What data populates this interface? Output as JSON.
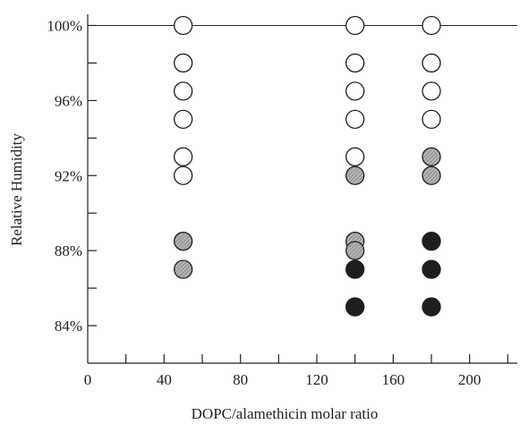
{
  "chart_data": {
    "type": "scatter",
    "title": "",
    "xlabel": "DOPC/alamethicin molar ratio",
    "ylabel": "Relative Humidity",
    "xlim": [
      0,
      225
    ],
    "ylim": [
      82,
      100.5
    ],
    "x_ticks": [
      0,
      40,
      80,
      120,
      160,
      200
    ],
    "x_tick_labels": [
      "0",
      "40",
      "80",
      "120",
      "160",
      "200"
    ],
    "y_ticks": [
      84,
      88,
      92,
      96,
      100
    ],
    "y_tick_labels": [
      "84%",
      "88%",
      "92%",
      "96%",
      "100%"
    ],
    "reference_line": {
      "y": 100
    },
    "marker_colors": {
      "open": "#ffffff",
      "hatched": "#a8a8a8",
      "filled": "#1e1e1e"
    },
    "points": [
      {
        "x": 50,
        "y": 100,
        "state": "open"
      },
      {
        "x": 50,
        "y": 98,
        "state": "open"
      },
      {
        "x": 50,
        "y": 96.5,
        "state": "open"
      },
      {
        "x": 50,
        "y": 95,
        "state": "open"
      },
      {
        "x": 50,
        "y": 93,
        "state": "open"
      },
      {
        "x": 50,
        "y": 92,
        "state": "open"
      },
      {
        "x": 50,
        "y": 88.5,
        "state": "hatched"
      },
      {
        "x": 50,
        "y": 87,
        "state": "hatched"
      },
      {
        "x": 140,
        "y": 100,
        "state": "open"
      },
      {
        "x": 140,
        "y": 98,
        "state": "open"
      },
      {
        "x": 140,
        "y": 96.5,
        "state": "open"
      },
      {
        "x": 140,
        "y": 95,
        "state": "open"
      },
      {
        "x": 140,
        "y": 93,
        "state": "open"
      },
      {
        "x": 140,
        "y": 92,
        "state": "hatched"
      },
      {
        "x": 140,
        "y": 88.5,
        "state": "hatched"
      },
      {
        "x": 140,
        "y": 88,
        "state": "hatched"
      },
      {
        "x": 140,
        "y": 87,
        "state": "filled"
      },
      {
        "x": 140,
        "y": 85,
        "state": "filled"
      },
      {
        "x": 180,
        "y": 100,
        "state": "open"
      },
      {
        "x": 180,
        "y": 98,
        "state": "open"
      },
      {
        "x": 180,
        "y": 96.5,
        "state": "open"
      },
      {
        "x": 180,
        "y": 95,
        "state": "open"
      },
      {
        "x": 180,
        "y": 93,
        "state": "hatched"
      },
      {
        "x": 180,
        "y": 92,
        "state": "hatched"
      },
      {
        "x": 180,
        "y": 88.5,
        "state": "filled"
      },
      {
        "x": 180,
        "y": 87,
        "state": "filled"
      },
      {
        "x": 180,
        "y": 85,
        "state": "filled"
      }
    ]
  }
}
